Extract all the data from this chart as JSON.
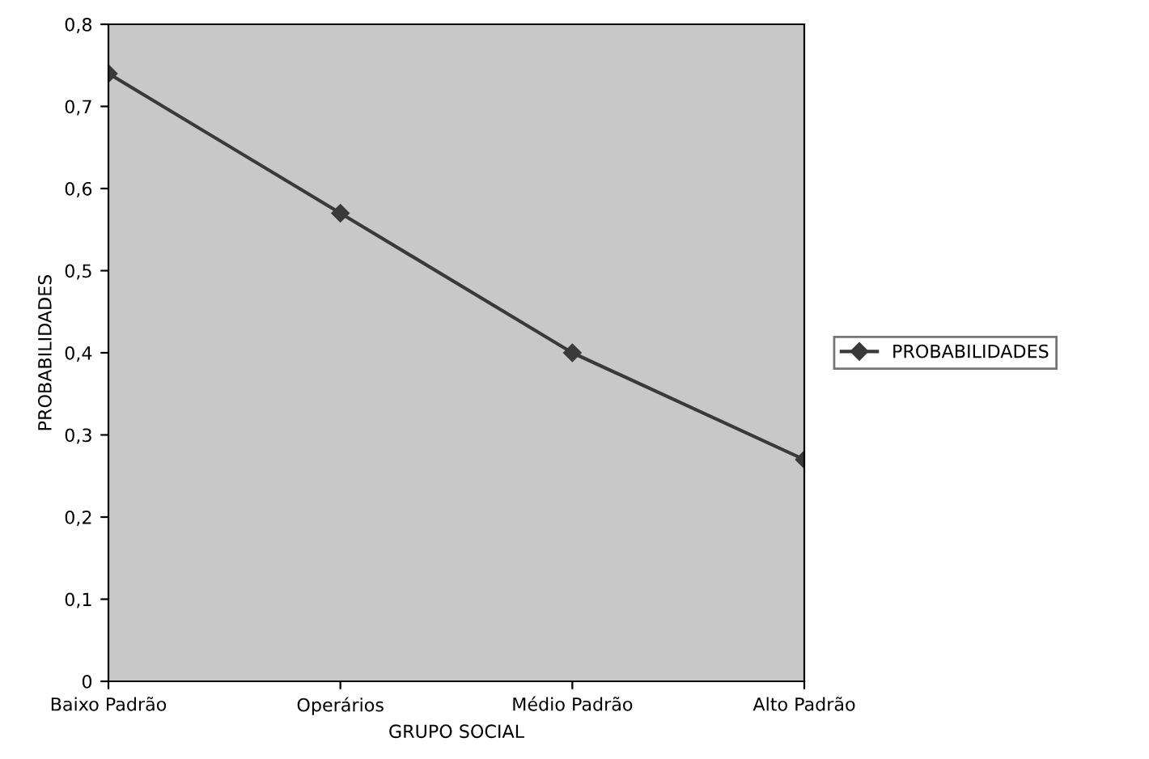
{
  "chart_data": {
    "type": "line",
    "xlabel": "GRUPO SOCIAL",
    "ylabel": "PROBABILIDADES",
    "categories": [
      "Baixo Padrão",
      "Operários",
      "Médio Padrão",
      "Alto Padrão"
    ],
    "series": [
      {
        "name": "PROBABILIDADES",
        "color": "#3a3a3a",
        "values": [
          0.74,
          0.57,
          0.4,
          0.27
        ]
      }
    ],
    "ylim": [
      0,
      0.8
    ],
    "yticks": [
      0,
      {
        "value": 0.1,
        "label": "0,1"
      },
      {
        "value": 0.2,
        "label": "0,2"
      },
      {
        "value": 0.3,
        "label": "0,3"
      },
      {
        "value": 0.4,
        "label": "0,4"
      },
      {
        "value": 0.5,
        "label": "0,5"
      },
      {
        "value": 0.6,
        "label": "0,6"
      },
      {
        "value": 0.7,
        "label": "0,7"
      },
      {
        "value": 0.8,
        "label": "0,8"
      }
    ],
    "grid": false,
    "legend": "right",
    "marker": "diamond",
    "line_style": "solid"
  }
}
